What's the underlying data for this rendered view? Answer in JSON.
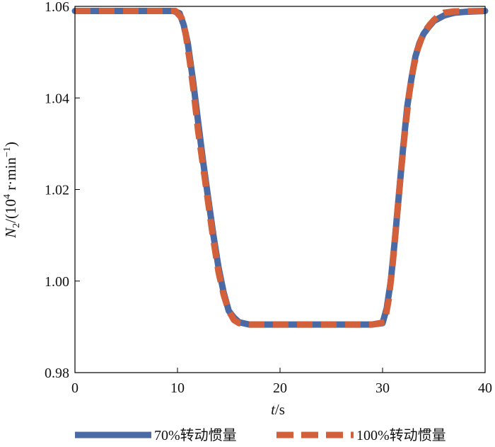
{
  "chart_data": {
    "type": "line",
    "title": "",
    "xlabel": {
      "italic": "t",
      "text": "/s"
    },
    "ylabel": {
      "italic": "N",
      "sub": "2",
      "pre": "/(10",
      "sup1": "4",
      "mid": " r·min",
      "sup2": "−1",
      "post": ")"
    },
    "xlim": [
      0,
      40
    ],
    "ylim": [
      0.98,
      1.06
    ],
    "xticks": [
      0,
      10,
      20,
      30,
      40
    ],
    "xtick_labels": [
      "0",
      "10",
      "20",
      "30",
      "40"
    ],
    "yticks": [
      0.98,
      1.0,
      1.02,
      1.04,
      1.06
    ],
    "ytick_labels": [
      "0.98",
      "1.00",
      "1.02",
      "1.04",
      "1.06"
    ],
    "grid": false,
    "legend_position": "bottom",
    "series": [
      {
        "name": "70%转动惯量",
        "color": "#4a6aa5",
        "style": "solid",
        "x": [
          0,
          9.6,
          10.2,
          10.6,
          11.0,
          11.5,
          12.0,
          12.5,
          13.0,
          13.5,
          14.0,
          14.5,
          15.0,
          15.5,
          16.0,
          17.0,
          20.0,
          25.0,
          29.0,
          30.0,
          30.4,
          30.8,
          31.2,
          31.6,
          32.0,
          32.4,
          32.8,
          33.2,
          33.6,
          34.0,
          34.5,
          35.0,
          36.0,
          37.0,
          38.0,
          40.0
        ],
        "y": [
          1.059,
          1.059,
          1.0585,
          1.056,
          1.052,
          1.044,
          1.035,
          1.026,
          1.018,
          1.01,
          1.003,
          0.9975,
          0.9935,
          0.992,
          0.991,
          0.9905,
          0.9905,
          0.9905,
          0.9905,
          0.9908,
          0.994,
          1.0,
          1.009,
          1.019,
          1.029,
          1.038,
          1.044,
          1.049,
          1.052,
          1.054,
          1.0555,
          1.0568,
          1.058,
          1.0586,
          1.0588,
          1.059
        ]
      },
      {
        "name": "100%转动惯量",
        "color": "#d2603a",
        "style": "dashed",
        "x": [
          0,
          9.8,
          10.4,
          10.8,
          11.2,
          11.6,
          12.0,
          12.5,
          13.0,
          13.5,
          14.0,
          14.5,
          15.0,
          15.5,
          16.0,
          17.0,
          20.0,
          25.0,
          29.0,
          30.2,
          30.6,
          31.0,
          31.4,
          31.8,
          32.2,
          32.6,
          33.0,
          33.4,
          33.8,
          34.2,
          34.6,
          35.0,
          35.5,
          36.0,
          37.0,
          40.0
        ],
        "y": [
          1.059,
          1.059,
          1.0575,
          1.054,
          1.048,
          1.041,
          1.033,
          1.025,
          1.017,
          1.009,
          1.002,
          0.997,
          0.9935,
          0.9915,
          0.9908,
          0.9905,
          0.9905,
          0.9905,
          0.9905,
          0.991,
          0.996,
          1.004,
          1.014,
          1.024,
          1.033,
          1.041,
          1.0465,
          1.0505,
          1.053,
          1.0548,
          1.056,
          1.057,
          1.058,
          1.0586,
          1.0589,
          1.059
        ]
      }
    ]
  }
}
